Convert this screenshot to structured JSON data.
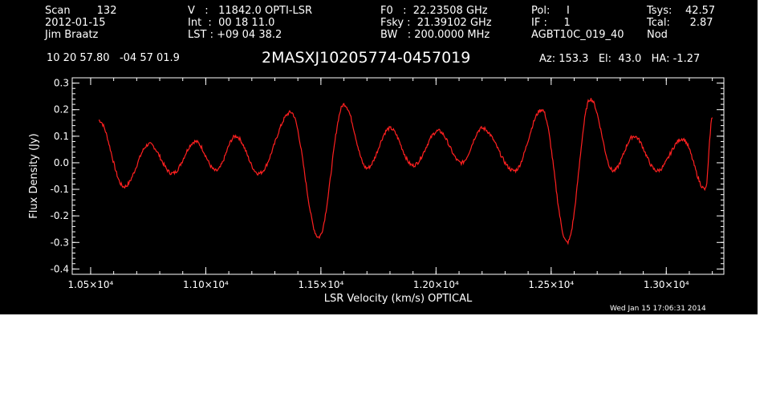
{
  "header": {
    "col1": [
      "Scan        132",
      "2012-01-15",
      "Jim Braatz"
    ],
    "col2": [
      "V   :   11842.0 OPTI-LSR",
      "Int  :  00 18 11.0",
      "LST : +09 04 38.2"
    ],
    "col3": [
      "F0   :  22.23508 GHz",
      "Fsky :  21.39102 GHz",
      "BW   : 200.0000 MHz"
    ],
    "col4": [
      "Pol:     I",
      "IF :     1",
      "AGBT10C_019_40"
    ],
    "col5": [
      "Tsys:    42.57",
      "Tcal:      2.87",
      "Nod"
    ],
    "coords": "10 20 57.80   -04 57 01.9",
    "source": "2MASXJ10205774-0457019",
    "pointing": "Az: 153.3   El:  43.0   HA: -1.27",
    "timestamp": "Wed Jan 15 17:06:31 2014"
  },
  "chart_data": {
    "type": "line",
    "xlabel": "LSR Velocity (km/s) OPTICAL",
    "ylabel": "Flux Density (Jy)",
    "xlim": [
      10420,
      13250
    ],
    "ylim": [
      -0.42,
      0.32
    ],
    "x_ticks": [
      10500,
      11000,
      11500,
      12000,
      12500,
      13000
    ],
    "x_tick_labels": [
      "1.05×10⁴",
      "1.10×10⁴",
      "1.15×10⁴",
      "1.20×10⁴",
      "1.25×10⁴",
      "1.30×10⁴"
    ],
    "y_ticks": [
      -0.4,
      -0.3,
      -0.2,
      -0.1,
      0.0,
      0.1,
      0.2,
      0.3
    ],
    "y_tick_labels": [
      "-0.4",
      "-0.3",
      "-0.2",
      "-0.1",
      "0.0",
      "0.1",
      "0.2",
      "0.3"
    ],
    "line_color": "#ff2020",
    "series": [
      {
        "x": [
          10535,
          10645,
          10755,
          10855,
          10955,
          11045,
          11130,
          11230,
          11370,
          11490,
          11600,
          11700,
          11800,
          11900,
          12010,
          12110,
          12200,
          12340,
          12460,
          12570,
          12670,
          12770,
          12860,
          12960,
          13070,
          13170,
          13200
        ],
        "y": [
          0.16,
          -0.09,
          0.07,
          -0.04,
          0.08,
          -0.03,
          0.1,
          -0.04,
          0.19,
          -0.28,
          0.22,
          -0.02,
          0.13,
          -0.01,
          0.12,
          0.0,
          0.13,
          -0.03,
          0.2,
          -0.3,
          0.24,
          -0.03,
          0.1,
          -0.03,
          0.09,
          -0.1,
          0.17
        ]
      }
    ]
  }
}
